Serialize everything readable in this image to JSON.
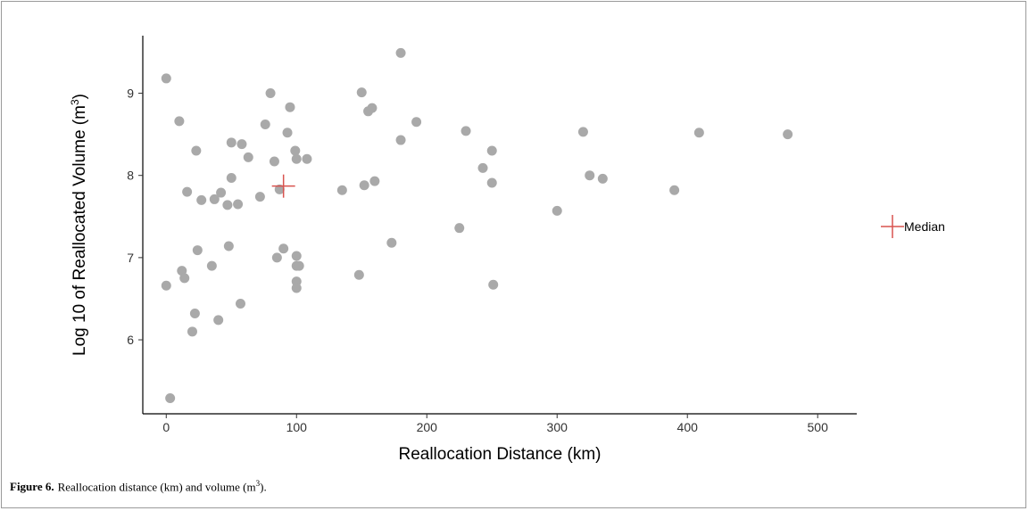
{
  "chart_data": {
    "type": "scatter",
    "xlabel": "Reallocation Distance (km)",
    "ylabel_main": "Log 10 of Reallocated Volume (m",
    "ylabel_sup": "3",
    "ylabel_end": ")",
    "xlim": [
      -18,
      530
    ],
    "ylim": [
      5.1,
      9.7
    ],
    "xticks": [
      0,
      100,
      200,
      300,
      400,
      500
    ],
    "yticks": [
      6,
      7,
      8,
      9
    ],
    "grid": false,
    "legend_position": "right",
    "point_color": "#a9a9a9",
    "median_color": "#d9534f",
    "points": [
      [
        0,
        9.18
      ],
      [
        0,
        6.66
      ],
      [
        3,
        5.29
      ],
      [
        10,
        8.66
      ],
      [
        12,
        6.84
      ],
      [
        14,
        6.75
      ],
      [
        16,
        7.8
      ],
      [
        20,
        6.1
      ],
      [
        22,
        6.32
      ],
      [
        23,
        8.3
      ],
      [
        24,
        7.09
      ],
      [
        27,
        7.7
      ],
      [
        35,
        6.9
      ],
      [
        37,
        7.71
      ],
      [
        40,
        6.24
      ],
      [
        42,
        7.79
      ],
      [
        47,
        7.64
      ],
      [
        48,
        7.14
      ],
      [
        50,
        8.4
      ],
      [
        50,
        7.97
      ],
      [
        55,
        7.65
      ],
      [
        57,
        6.44
      ],
      [
        58,
        8.38
      ],
      [
        63,
        8.22
      ],
      [
        72,
        7.74
      ],
      [
        76,
        8.62
      ],
      [
        80,
        9.0
      ],
      [
        83,
        8.17
      ],
      [
        85,
        7.0
      ],
      [
        87,
        7.83
      ],
      [
        90,
        7.11
      ],
      [
        93,
        8.52
      ],
      [
        95,
        8.83
      ],
      [
        99,
        8.3
      ],
      [
        100,
        8.2
      ],
      [
        100,
        7.02
      ],
      [
        100,
        6.9
      ],
      [
        102,
        6.9
      ],
      [
        100,
        6.71
      ],
      [
        100,
        6.63
      ],
      [
        108,
        8.2
      ],
      [
        135,
        7.82
      ],
      [
        148,
        6.79
      ],
      [
        150,
        9.01
      ],
      [
        152,
        7.88
      ],
      [
        155,
        8.78
      ],
      [
        158,
        8.82
      ],
      [
        160,
        7.93
      ],
      [
        173,
        7.18
      ],
      [
        180,
        9.49
      ],
      [
        180,
        8.43
      ],
      [
        192,
        8.65
      ],
      [
        225,
        7.36
      ],
      [
        230,
        8.54
      ],
      [
        243,
        8.09
      ],
      [
        250,
        8.3
      ],
      [
        250,
        7.91
      ],
      [
        251,
        6.67
      ],
      [
        300,
        7.57
      ],
      [
        320,
        8.53
      ],
      [
        325,
        8.0
      ],
      [
        335,
        7.96
      ],
      [
        390,
        7.82
      ],
      [
        409,
        8.52
      ],
      [
        477,
        8.5
      ]
    ],
    "median": {
      "x": 90,
      "y": 7.87
    },
    "legend": {
      "label": "Median"
    }
  },
  "caption": {
    "figure_number": "Figure 6.",
    "text_before": "Reallocation distance (km) and volume (m",
    "sup": "3",
    "text_after": ")."
  }
}
